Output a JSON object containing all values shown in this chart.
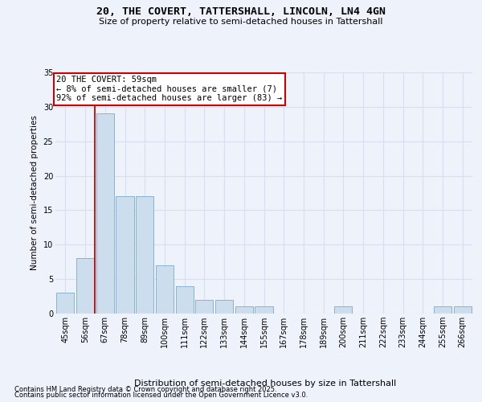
{
  "title1": "20, THE COVERT, TATTERSHALL, LINCOLN, LN4 4GN",
  "title2": "Size of property relative to semi-detached houses in Tattershall",
  "xlabel": "Distribution of semi-detached houses by size in Tattershall",
  "ylabel": "Number of semi-detached properties",
  "categories": [
    "45sqm",
    "56sqm",
    "67sqm",
    "78sqm",
    "89sqm",
    "100sqm",
    "111sqm",
    "122sqm",
    "133sqm",
    "144sqm",
    "155sqm",
    "167sqm",
    "178sqm",
    "189sqm",
    "200sqm",
    "211sqm",
    "222sqm",
    "233sqm",
    "244sqm",
    "255sqm",
    "266sqm"
  ],
  "values": [
    3,
    8,
    29,
    17,
    17,
    7,
    4,
    2,
    2,
    1,
    1,
    0,
    0,
    0,
    1,
    0,
    0,
    0,
    0,
    1,
    1
  ],
  "bar_color": "#ccdded",
  "bar_edge_color": "#7aabcc",
  "vline_x": 1.5,
  "vline_color": "#cc0000",
  "annotation_text": "20 THE COVERT: 59sqm\n← 8% of semi-detached houses are smaller (7)\n92% of semi-detached houses are larger (83) →",
  "annotation_box_facecolor": "#ffffff",
  "annotation_box_edgecolor": "#cc0000",
  "ylim": [
    0,
    35
  ],
  "yticks": [
    0,
    5,
    10,
    15,
    20,
    25,
    30,
    35
  ],
  "bg_color": "#eef2fb",
  "grid_color": "#d8dff0",
  "footer1": "Contains HM Land Registry data © Crown copyright and database right 2025.",
  "footer2": "Contains public sector information licensed under the Open Government Licence v3.0.",
  "title1_fontsize": 9.5,
  "title2_fontsize": 8.0,
  "ylabel_fontsize": 7.5,
  "xlabel_fontsize": 8.0,
  "tick_fontsize": 7.0,
  "footer_fontsize": 6.0,
  "annot_fontsize": 7.5
}
